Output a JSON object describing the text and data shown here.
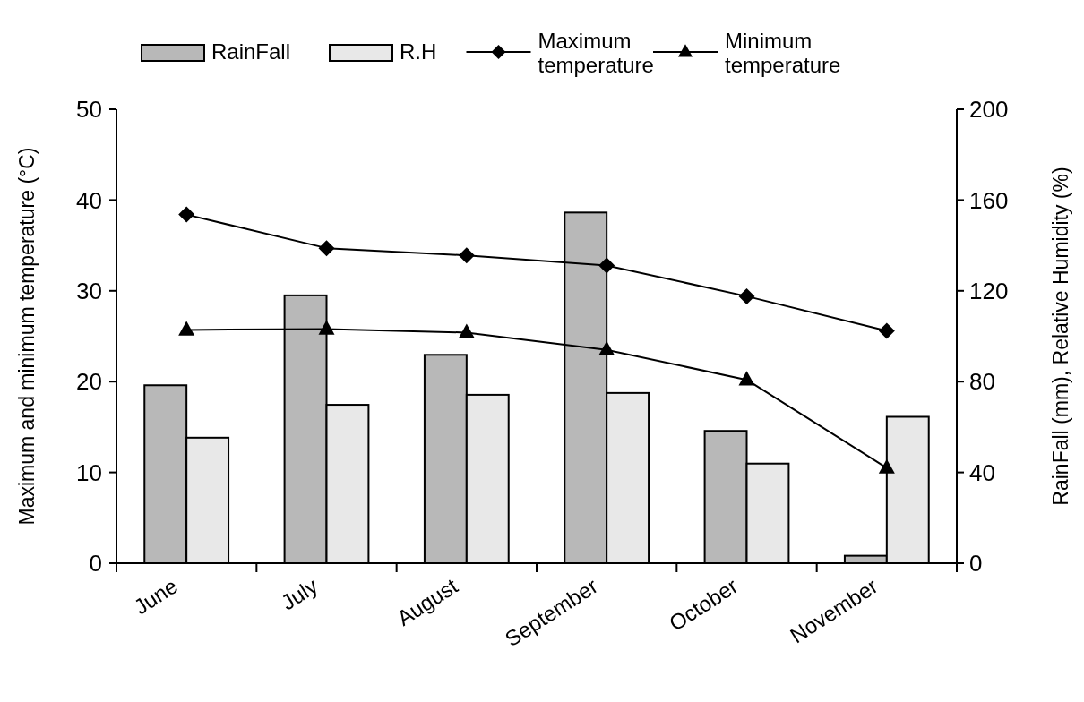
{
  "chart_data": {
    "type": "bar",
    "categories": [
      "June",
      "July",
      "August",
      "September",
      "October",
      "November"
    ],
    "ylabel": "Maximum and minimum temperature (°C)",
    "y2label": "RainFall (mm), Relative Humidity (%)",
    "ylim": [
      0,
      50
    ],
    "yticks": [
      0,
      10,
      20,
      30,
      40,
      50
    ],
    "y2lim": [
      0,
      200
    ],
    "y2ticks": [
      0,
      40,
      80,
      120,
      160,
      200
    ],
    "legend": "top",
    "grid": false,
    "line_style": "solid",
    "series": [
      {
        "name": "RainFall",
        "type": "bar",
        "axis": "y2",
        "color": "#b8b8b8",
        "values": [
          78.4,
          118,
          91.8,
          154.5,
          58.3,
          3.3
        ]
      },
      {
        "name": "R.H",
        "type": "bar",
        "axis": "y2",
        "color": "#e8e8e8",
        "values": [
          55.3,
          69.8,
          74.2,
          75,
          43.9,
          64.5
        ]
      },
      {
        "name": "Maximum temperature",
        "type": "line",
        "marker": "diamond",
        "color": "#000000",
        "values": [
          38.4,
          34.7,
          33.9,
          32.8,
          29.4,
          25.6
        ]
      },
      {
        "name": "Minimum temperature",
        "type": "line",
        "marker": "triangle",
        "color": "#000000",
        "values": [
          25.7,
          25.8,
          25.4,
          23.5,
          20.2,
          10.5
        ]
      }
    ]
  }
}
